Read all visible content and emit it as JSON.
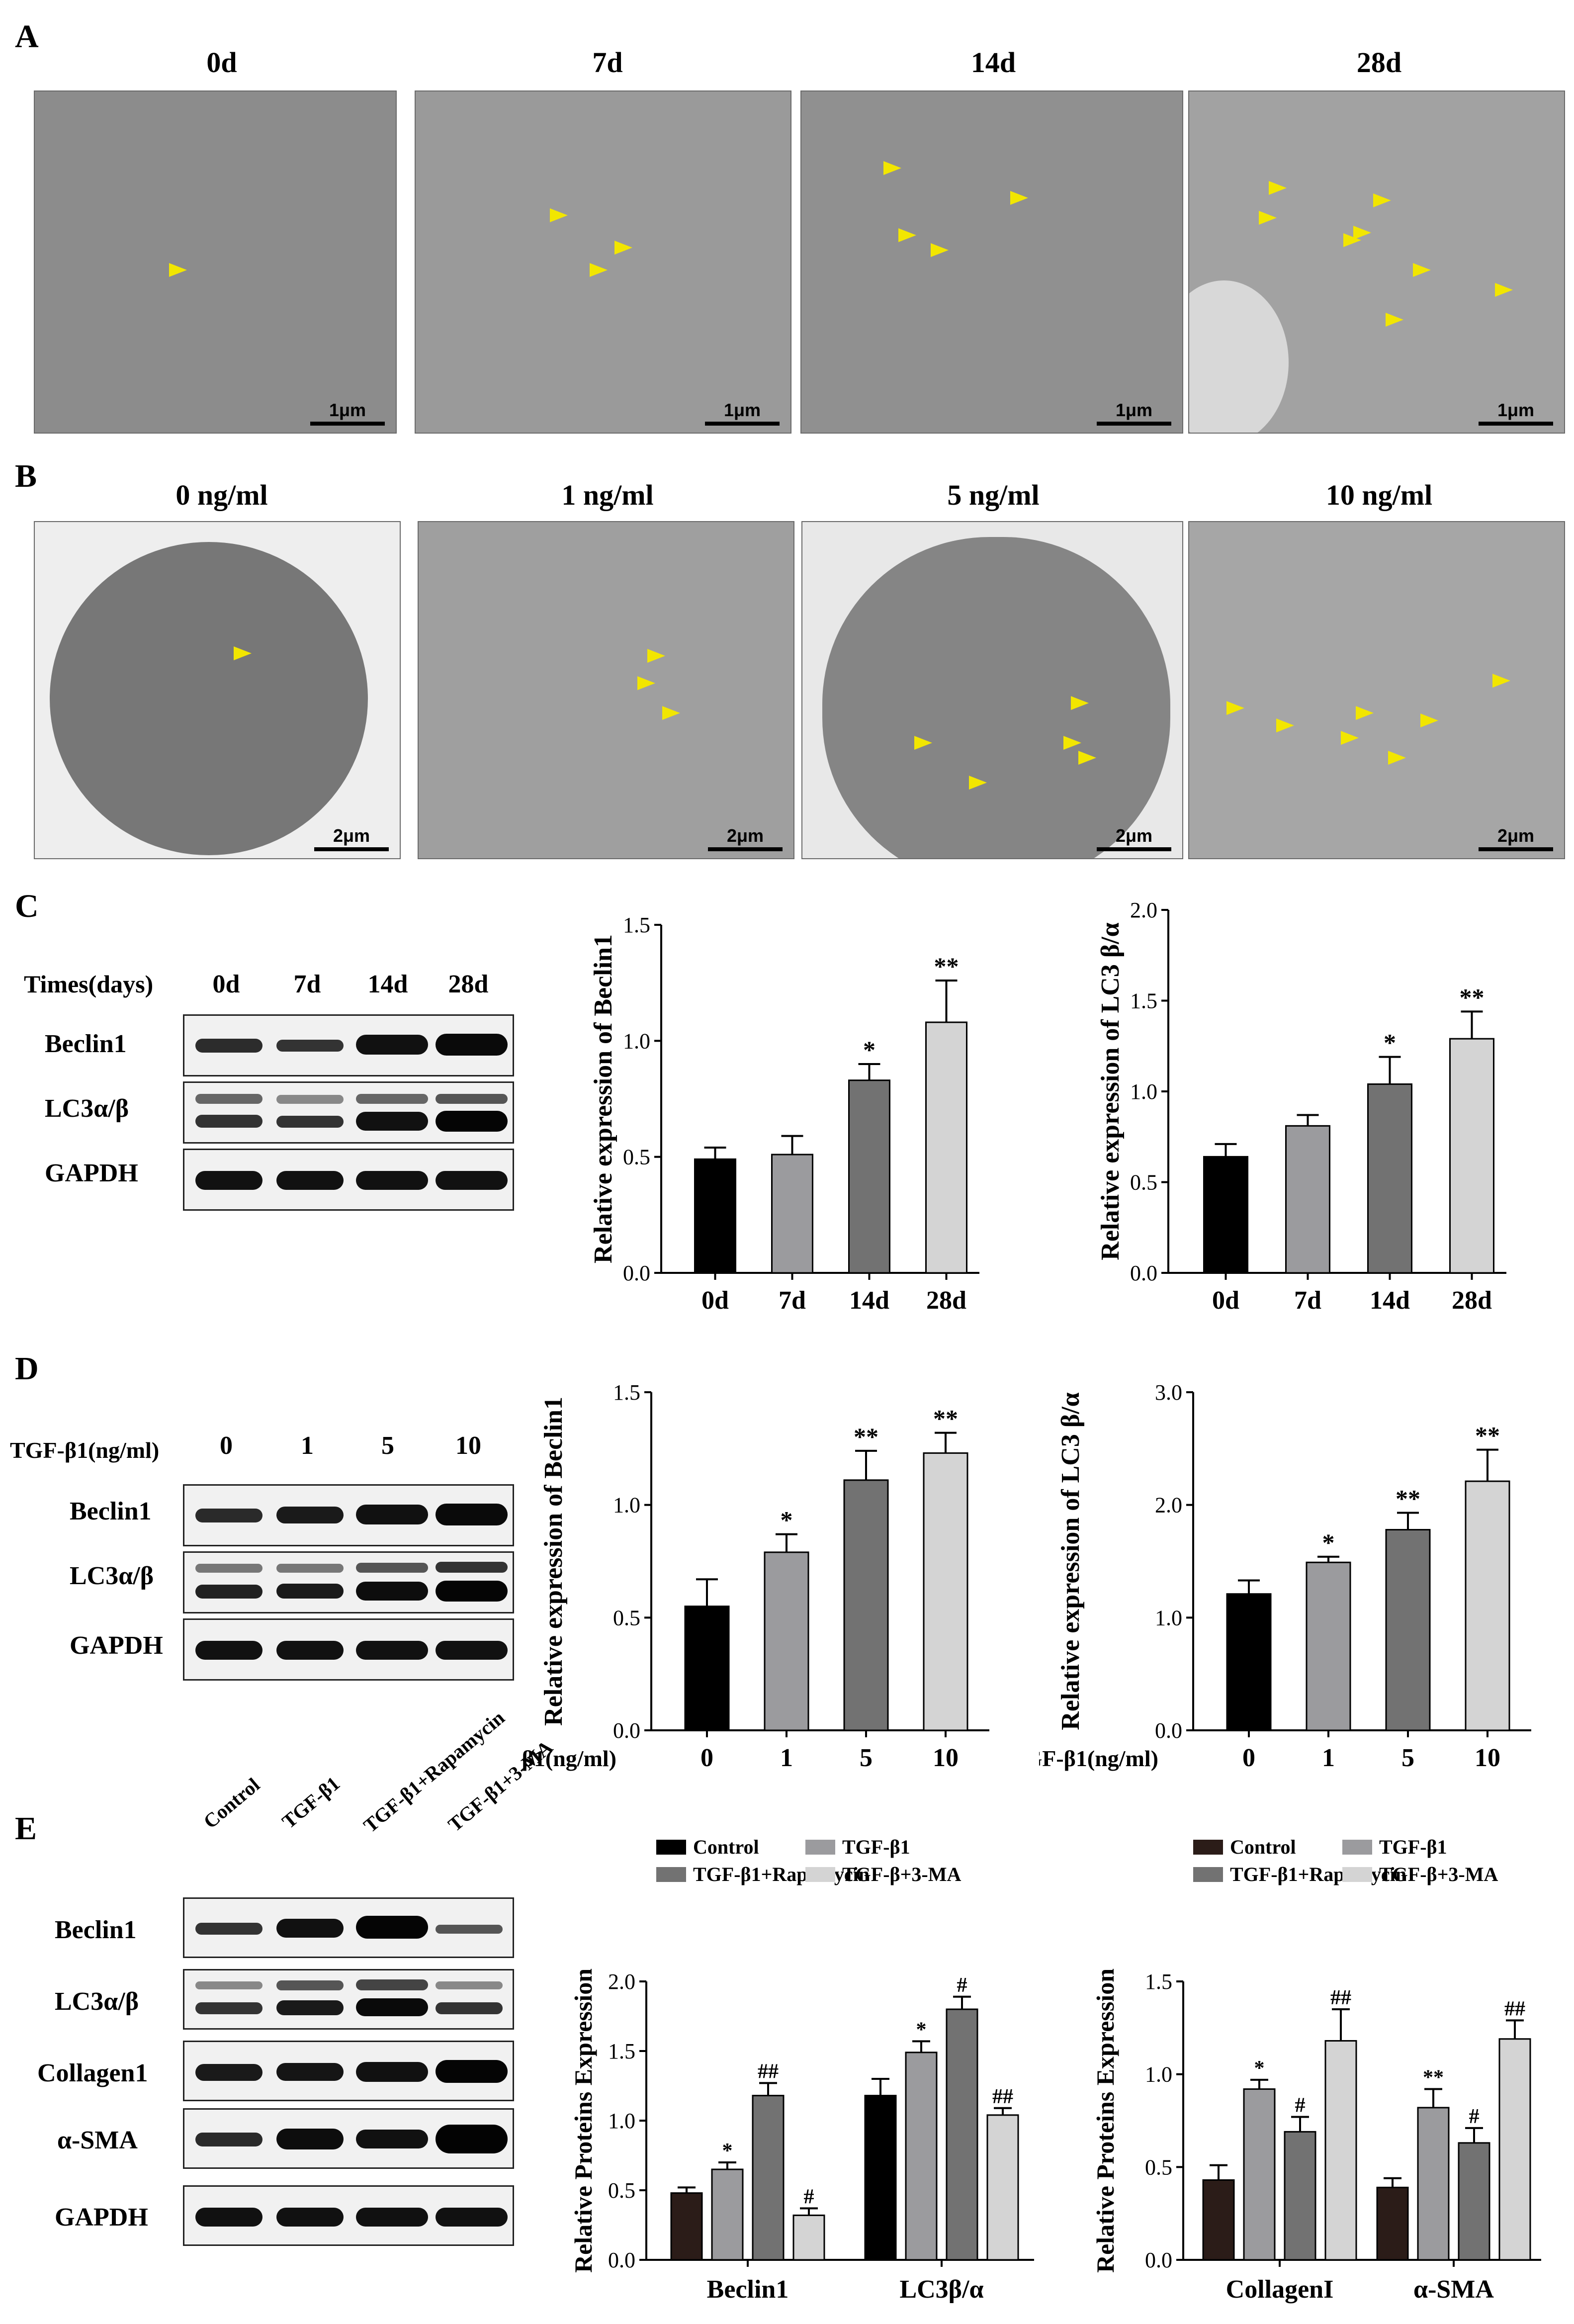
{
  "panels": {
    "A": "A",
    "B": "B",
    "C": "C",
    "D": "D",
    "E": "E"
  },
  "panel_A": {
    "titles": [
      "0d",
      "7d",
      "14d",
      "28d"
    ],
    "scale_label": "1μm",
    "arrow_color": "#f2e600"
  },
  "panel_B": {
    "titles": [
      "0 ng/ml",
      "1 ng/ml",
      "5 ng/ml",
      "10 ng/ml"
    ],
    "scale_label": "2μm"
  },
  "panel_C": {
    "header_label": "Times(days)",
    "lanes": [
      "0d",
      "7d",
      "14d",
      "28d"
    ],
    "rows": [
      "Beclin1",
      "LC3α/β",
      "GAPDH"
    ]
  },
  "panel_D": {
    "header_label": "TGF-β1(ng/ml)",
    "lanes": [
      "0",
      "1",
      "5",
      "10"
    ],
    "rows": [
      "Beclin1",
      "LC3α/β",
      "GAPDH"
    ]
  },
  "panel_E": {
    "lanes": [
      "Control",
      "TGF-β1",
      "TGF-β1+Rapamycin",
      "TGF-β1+3-MA"
    ],
    "rows": [
      "Beclin1",
      "LC3α/β",
      "Collagen1",
      "α-SMA",
      "GAPDH"
    ]
  },
  "colors": {
    "black": "#000000",
    "midgray": "#9b9b9e",
    "darkgray": "#727272",
    "lightgray": "#d4d4d4",
    "brown": "#2b1c18"
  },
  "chart_data": [
    {
      "type": "bar",
      "id": "C-beclin",
      "categories": [
        "0d",
        "7d",
        "14d",
        "28d"
      ],
      "values": [
        0.49,
        0.51,
        0.83,
        1.08
      ],
      "errors": [
        0.05,
        0.08,
        0.07,
        0.18
      ],
      "sig": [
        "",
        "",
        "*",
        "**"
      ],
      "ylabel": "Relative expression of Beclin1",
      "ylim": [
        0,
        1.5
      ],
      "yticks": [
        0.0,
        0.5,
        1.0,
        1.5
      ],
      "xprefix": ""
    },
    {
      "type": "bar",
      "id": "C-lc3",
      "categories": [
        "0d",
        "7d",
        "14d",
        "28d"
      ],
      "values": [
        0.64,
        0.81,
        1.04,
        1.29
      ],
      "errors": [
        0.07,
        0.06,
        0.15,
        0.15
      ],
      "sig": [
        "",
        "",
        "*",
        "**"
      ],
      "ylabel": "Relative expression of LC3 β/α",
      "ylim": [
        0,
        2.0
      ],
      "yticks": [
        0.0,
        0.5,
        1.0,
        1.5,
        2.0
      ],
      "xprefix": ""
    },
    {
      "type": "bar",
      "id": "D-beclin",
      "categories": [
        "0",
        "1",
        "5",
        "10"
      ],
      "values": [
        0.55,
        0.79,
        1.11,
        1.23
      ],
      "errors": [
        0.12,
        0.08,
        0.13,
        0.09
      ],
      "sig": [
        "",
        "*",
        "**",
        "**"
      ],
      "ylabel": "Relative expression of Beclin1",
      "ylim": [
        0,
        1.5
      ],
      "yticks": [
        0.0,
        0.5,
        1.0,
        1.5
      ],
      "xprefix": "TGF-β1(ng/ml)"
    },
    {
      "type": "bar",
      "id": "D-lc3",
      "categories": [
        "0",
        "1",
        "5",
        "10"
      ],
      "values": [
        1.21,
        1.49,
        1.78,
        2.21
      ],
      "errors": [
        0.12,
        0.05,
        0.15,
        0.28
      ],
      "sig": [
        "",
        "*",
        "**",
        "**"
      ],
      "ylabel": "Relative expression of LC3 β/α",
      "ylim": [
        0,
        3.0
      ],
      "yticks": [
        0.0,
        1.0,
        2.0,
        3.0
      ],
      "xprefix": "TGF-β1(ng/ml)"
    },
    {
      "type": "bar",
      "id": "E-left",
      "categories": [
        "Beclin1",
        "LC3β/α"
      ],
      "series": [
        {
          "name": "Control",
          "values": [
            0.48,
            1.18
          ],
          "errors": [
            0.04,
            0.12
          ],
          "sig": [
            "",
            ""
          ]
        },
        {
          "name": "TGF-β1",
          "values": [
            0.65,
            1.49
          ],
          "errors": [
            0.05,
            0.08
          ],
          "sig": [
            "*",
            "*"
          ]
        },
        {
          "name": "TGF-β1+Rapamycin",
          "values": [
            1.18,
            1.8
          ],
          "errors": [
            0.09,
            0.09
          ],
          "sig": [
            "##",
            "#"
          ]
        },
        {
          "name": "TGF-β+3-MA",
          "values": [
            0.32,
            1.04
          ],
          "errors": [
            0.05,
            0.05
          ],
          "sig": [
            "#",
            "##"
          ]
        }
      ],
      "ylabel": "Relative Proteins Expression",
      "ylim": [
        0,
        2.0
      ],
      "yticks": [
        0.0,
        0.5,
        1.0,
        1.5,
        2.0
      ]
    },
    {
      "type": "bar",
      "id": "E-right",
      "categories": [
        "CollagenI",
        "α-SMA"
      ],
      "series": [
        {
          "name": "Control",
          "values": [
            0.43,
            0.39
          ],
          "errors": [
            0.08,
            0.05
          ],
          "sig": [
            "",
            ""
          ]
        },
        {
          "name": "TGF-β1",
          "values": [
            0.92,
            0.82
          ],
          "errors": [
            0.05,
            0.1
          ],
          "sig": [
            "*",
            "**"
          ]
        },
        {
          "name": "TGF-β1+Rapamycin",
          "values": [
            0.69,
            0.63
          ],
          "errors": [
            0.08,
            0.08
          ],
          "sig": [
            "#",
            "#"
          ]
        },
        {
          "name": "TGF-β+3-MA",
          "values": [
            1.18,
            1.19
          ],
          "errors": [
            0.17,
            0.1
          ],
          "sig": [
            "##",
            "##"
          ]
        }
      ],
      "ylabel": "Relative Proteins Expression",
      "ylim": [
        0,
        1.5
      ],
      "yticks": [
        0.0,
        0.5,
        1.0,
        1.5
      ]
    }
  ]
}
